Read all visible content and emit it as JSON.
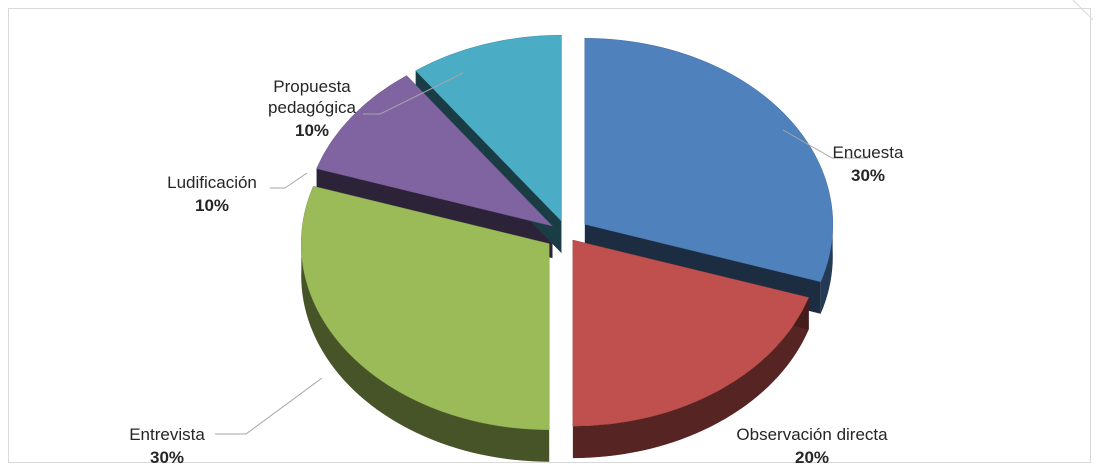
{
  "chart_data": {
    "type": "pie",
    "title": "",
    "style": "3d-exploded",
    "legend": "none",
    "categories": [
      "Encuesta",
      "Observación directa",
      "Entrevista",
      "Ludificación",
      "Propuesta pedagógica"
    ],
    "values": [
      30,
      20,
      30,
      10,
      10
    ],
    "percent_labels": [
      "30%",
      "20%",
      "30%",
      "10%",
      "10%"
    ],
    "label_lines": [
      [
        "Encuesta"
      ],
      [
        "Observación directa"
      ],
      [
        "Entrevista"
      ],
      [
        "Ludificación"
      ],
      [
        "Propuesta",
        "pedagógica"
      ]
    ],
    "colors": [
      "#4f81bd",
      "#c0504d",
      "#9bbb59",
      "#8064a2",
      "#4bacc6"
    ]
  }
}
